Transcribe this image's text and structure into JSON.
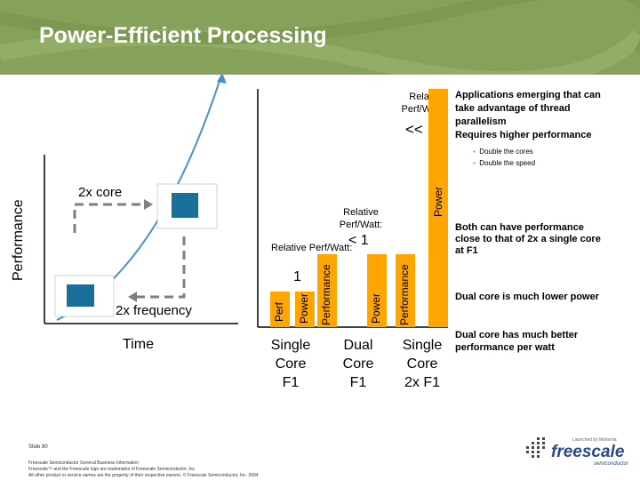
{
  "header": {
    "title": "Power-Efficient Processing"
  },
  "left_graph": {
    "y_axis_label": "Performance",
    "x_axis_label": "Time",
    "label_2x_core": "2x core",
    "label_2x_frequency": "2x frequency"
  },
  "bars": {
    "single": {
      "ratio_label": "Relative Perf/Watt:",
      "ratio_value": "1",
      "bar1_label": "Perf",
      "bar2_label": "Power",
      "caption_l1": "Single",
      "caption_l2": "Core",
      "caption_l3": "F1"
    },
    "dual": {
      "ratio_label": "Relative Perf/Watt:",
      "ratio_value": "< 1",
      "bar1_label": "Performance",
      "bar2_label": "Power",
      "caption_l1": "Dual",
      "caption_l2": "Core",
      "caption_l3": "F1"
    },
    "single2x": {
      "ratio_label_l1": "Relative",
      "ratio_label_l2": "Perf/Watt:",
      "ratio_value": "<< 1",
      "bar1_label": "Performance",
      "bar2_label": "Power",
      "caption_l1": "Single",
      "caption_l2": "Core",
      "caption_l3": "2x F1"
    }
  },
  "right_panel": {
    "heading_l1": "Applications emerging that can",
    "heading_l2": "take advantage of thread",
    "heading_l3": "parallelism",
    "heading_l4": "Requires higher performance",
    "bullet_1": "Double the cores",
    "bullet_2": "Double the speed",
    "note1_l1": "Both can have performance",
    "note1_l2": "close to that of 2x a single core",
    "note1_l3": "at F1",
    "note2": "Dual core is much lower power",
    "note3_l1": "Dual core has much better",
    "note3_l2": "performance per watt"
  },
  "footer": {
    "slide": "Slide 80",
    "line1": "Freescale Semiconductor General Business Information",
    "line2": "Freescale™ and the Freescale logo are trademarks of Freescale Semiconductor, Inc.",
    "line3": "All other product or service names are the property of their respective owners. © Freescale Semiconductor, Inc. 2004"
  },
  "logo": {
    "top_text": "Launched by Motorola",
    "wordmark": "freescale",
    "sub": "semiconductor"
  },
  "colors": {
    "header": "#86a25a",
    "bar": "#ffa500",
    "box": "#1a6e9a",
    "arrow": "#4a90c8",
    "dashes": "#7f7f7f"
  }
}
